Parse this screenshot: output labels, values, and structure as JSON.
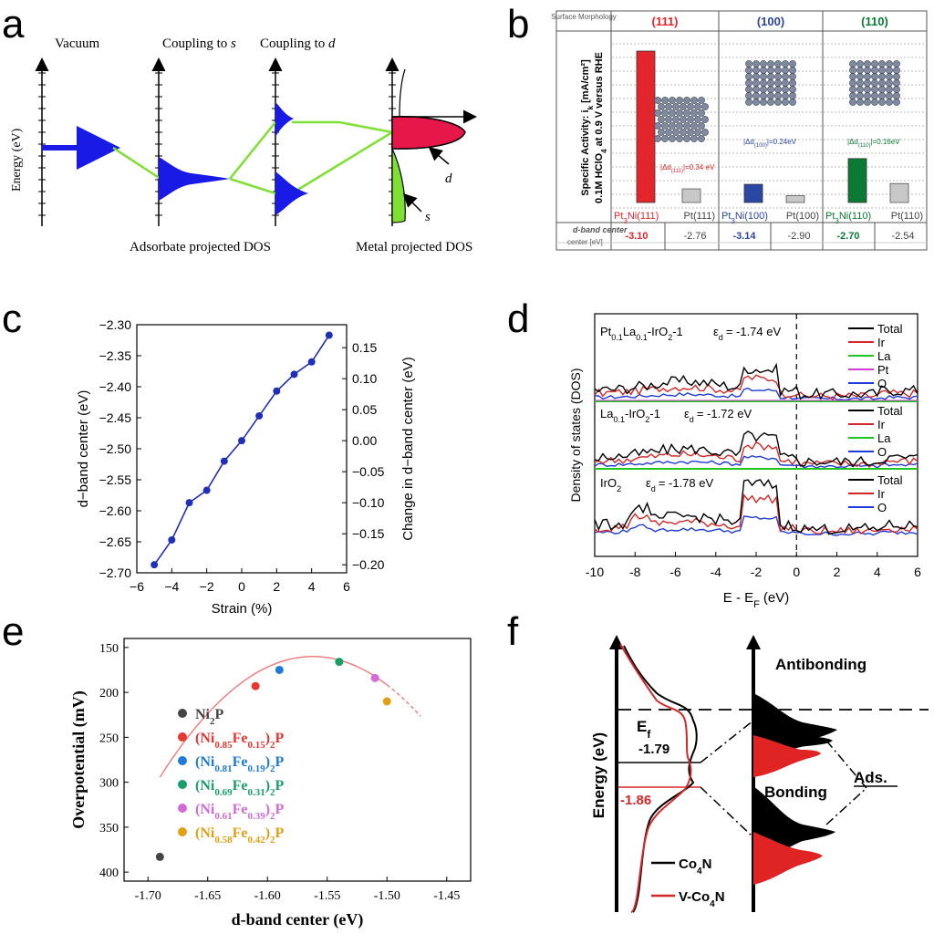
{
  "panel_letters": [
    "a",
    "b",
    "c",
    "d",
    "e",
    "f"
  ],
  "colors": {
    "blue": "#1a1ae6",
    "green": "#7ee032",
    "red": "#e8174a",
    "panel_b_red": "#e3262b",
    "panel_b_blue": "#2a47a6",
    "panel_b_green": "#0b7a34",
    "line_blue": "#1f2fb8",
    "dos_red": "#d62728",
    "dos_green": "#21c421",
    "dos_pink": "#d43ad4",
    "dos_blue": "#1f3bd8",
    "fit_red": "#f08080"
  },
  "chart_data": [
    {
      "id": "a",
      "type": "diagram",
      "labels": {
        "vacuum": "Vacuum",
        "coupling_s": "Coupling to",
        "s": "s",
        "coupling_d": "Coupling to",
        "d": "d",
        "energy": "Energy (eV)",
        "adsorbate": "Adsorbate projected DOS",
        "metal": "Metal projected DOS",
        "arrow_d": "d",
        "arrow_s": "s"
      }
    },
    {
      "id": "b",
      "type": "bar",
      "header_label": "Surface Morphology",
      "ylabel_line1": "Specific Activity: i",
      "ylabel_line1_sub": "k",
      "ylabel_line1_tail": "[mA/cm²]",
      "ylabel_line2": "0.1M HClO",
      "ylabel_line2_sub": "4",
      "ylabel_line2_tail": "at 0.9 V versus RHE",
      "facets": [
        {
          "name": "(111)",
          "color": "#e3262b",
          "alloy": "Pt",
          "alloy_sub": "3",
          "alloy_tail": "Ni(111)",
          "pure": "Pt(111)",
          "alloy_value": 1.0,
          "pure_value": 0.09,
          "shift_pre": "|Δd",
          "shift_sub": "(111)",
          "shift_post": "|=0.34 eV",
          "alloy_dband": "-3.10",
          "pure_dband": "-2.76"
        },
        {
          "name": "(100)",
          "color": "#2a47a6",
          "alloy": "Pt",
          "alloy_sub": "3",
          "alloy_tail": "Ni(100)",
          "pure": "Pt(100)",
          "alloy_value": 0.12,
          "pure_value": 0.045,
          "shift_pre": "|Δd",
          "shift_sub": "(100)",
          "shift_post": "|=0.24eV",
          "alloy_dband": "-3.14",
          "pure_dband": "-2.90"
        },
        {
          "name": "(110)",
          "color": "#0b7a34",
          "alloy": "Pt",
          "alloy_sub": "3",
          "alloy_tail": "Ni(110)",
          "pure": "Pt(110)",
          "alloy_value": 0.29,
          "pure_value": 0.125,
          "shift_pre": "|Δd",
          "shift_sub": "(110)",
          "shift_post": "|=0.16eV",
          "alloy_dband": "-2.70",
          "pure_dband": "-2.54"
        }
      ],
      "dband_label": "d-band center",
      "dband_unit": "[eV]"
    },
    {
      "id": "c",
      "type": "line",
      "x": [
        -5,
        -4,
        -3,
        -2,
        -1,
        0,
        1,
        2,
        3,
        4,
        5
      ],
      "y": [
        -2.687,
        -2.647,
        -2.587,
        -2.567,
        -2.52,
        -2.487,
        -2.447,
        -2.407,
        -2.38,
        -2.36,
        -2.317
      ],
      "xlabel": "Strain (%)",
      "ylabel": "d−band center (eV)",
      "y2label": "Change in d−band center (eV)",
      "xlim": [
        -6,
        6
      ],
      "ylim": [
        -2.7,
        -2.3
      ],
      "xticks": [
        "−6",
        "−4",
        "−2",
        "0",
        "2",
        "4",
        "6"
      ],
      "yticks": [
        "−2.70",
        "−2.65",
        "−2.60",
        "−2.55",
        "−2.50",
        "−2.45",
        "−2.40",
        "−2.35",
        "−2.30"
      ],
      "y2ticks": [
        "−0.20",
        "−0.15",
        "−0.10",
        "−0.05",
        "0.00",
        "0.05",
        "0.10",
        "0.15"
      ]
    },
    {
      "id": "d",
      "type": "line",
      "xlabel": "E - E",
      "xlabel_sub": "F",
      "xlabel_tail": "(eV)",
      "ylabel": "Density of states (DOS)",
      "xlim": [
        -10,
        6
      ],
      "xticks": [
        "-10",
        "-8",
        "-6",
        "-4",
        "-2",
        "0",
        "2",
        "4",
        "6"
      ],
      "panels": [
        {
          "title_pre": "Pt",
          "title_sub1": "0.1",
          "title_mid": "La",
          "title_sub2": "0.1",
          "title_post": "-IrO",
          "title_sub3": "2",
          "title_tail": "-1",
          "ed": "ε",
          "ed_sub": "d",
          "ed_value": "= -1.74 eV",
          "legend": [
            "Total",
            "Ir",
            "La",
            "Pt",
            "O"
          ]
        },
        {
          "title_pre": "La",
          "title_sub1": "0.1",
          "title_mid": "",
          "title_sub2": "",
          "title_post": "-IrO",
          "title_sub3": "2",
          "title_tail": "-1",
          "ed": "ε",
          "ed_sub": "d",
          "ed_value": "= -1.72 eV",
          "legend": [
            "Total",
            "Ir",
            "La",
            "O"
          ]
        },
        {
          "title_pre": "IrO",
          "title_sub1": "2",
          "title_mid": "",
          "title_sub2": "",
          "title_post": "",
          "title_sub3": "",
          "title_tail": "",
          "ed": "ε",
          "ed_sub": "d",
          "ed_value": "= -1.78 eV",
          "legend": [
            "Total",
            "Ir",
            "O"
          ]
        }
      ]
    },
    {
      "id": "e",
      "type": "scatter",
      "x": [
        -1.69,
        -1.61,
        -1.59,
        -1.54,
        -1.51,
        -1.5
      ],
      "y": [
        383,
        193,
        175,
        166,
        184,
        210
      ],
      "xlabel": "d-band center (eV)",
      "ylabel": "Overpotential (mV)",
      "xlim": [
        -1.72,
        -1.43
      ],
      "ylim": [
        410,
        140
      ],
      "xticks": [
        "-1.70",
        "-1.65",
        "-1.60",
        "-1.55",
        "-1.50",
        "-1.45"
      ],
      "yticks": [
        "150",
        "200",
        "250",
        "300",
        "350",
        "400"
      ],
      "series": [
        {
          "pre": "Ni",
          "sub1": "2",
          "mid": "P",
          "sub2": "",
          "tail": "",
          "sub3": "",
          "post": "",
          "color": "#444444"
        },
        {
          "pre": "(Ni",
          "sub1": "0.85",
          "mid": "Fe",
          "sub2": "0.15",
          "tail": ")",
          "sub3": "2",
          "post": "P",
          "color": "#e8372f"
        },
        {
          "pre": "(Ni",
          "sub1": "0.81",
          "mid": "Fe",
          "sub2": "0.19",
          "tail": ")",
          "sub3": "2",
          "post": "P",
          "color": "#1e7bd8"
        },
        {
          "pre": "(Ni",
          "sub1": "0.69",
          "mid": "Fe",
          "sub2": "0.31",
          "tail": ")",
          "sub3": "2",
          "post": "P",
          "color": "#17a06a"
        },
        {
          "pre": "(Ni",
          "sub1": "0.61",
          "mid": "Fe",
          "sub2": "0.39",
          "tail": ")",
          "sub3": "2",
          "post": "P",
          "color": "#d36ad8"
        },
        {
          "pre": "(Ni",
          "sub1": "0.58",
          "mid": "Fe",
          "sub2": "0.42",
          "tail": ")",
          "sub3": "2",
          "post": "P",
          "color": "#e0a016"
        }
      ]
    },
    {
      "id": "f",
      "type": "diagram",
      "labels": {
        "energy": "Energy (eV)",
        "ef": "E",
        "ef_sub": "f",
        "v1": "-1.79",
        "v2": "-1.86",
        "antibonding": "Antibonding",
        "bonding": "Bonding",
        "ads": "Ads.",
        "leg1_pre": "Co",
        "leg1_sub": "4",
        "leg1_post": "N",
        "leg2_pre": "V-Co",
        "leg2_sub": "4",
        "leg2_post": "N"
      }
    }
  ]
}
